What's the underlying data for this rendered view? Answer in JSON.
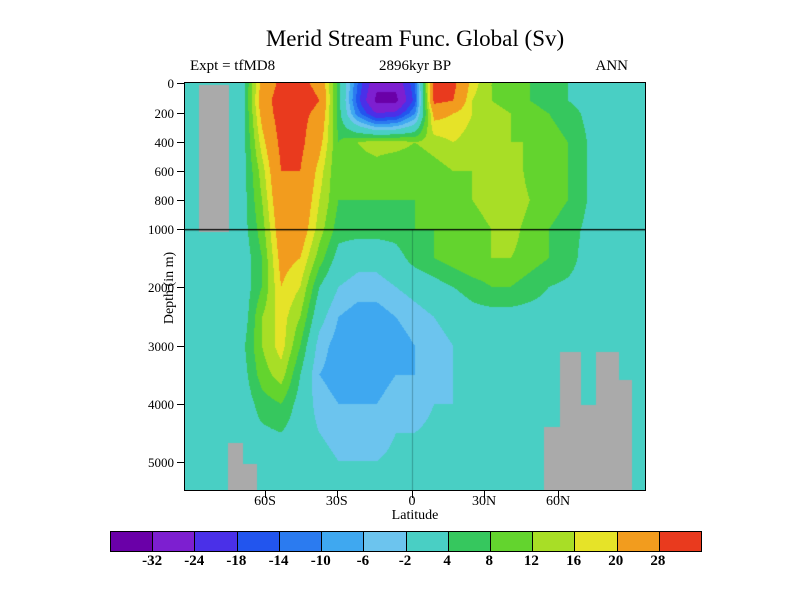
{
  "header": {
    "title": "Merid Stream Func. Global (Sv)",
    "experiment": "Expt = tfMD8",
    "time": "2896kyr BP",
    "season": "ANN"
  },
  "axes": {
    "y_label": "Depth (in m)",
    "x_label": "Latitude",
    "y_ticks": [
      {
        "label": "0",
        "f": 0
      },
      {
        "label": "200",
        "f": 0.0737
      },
      {
        "label": "400",
        "f": 0.145
      },
      {
        "label": "600",
        "f": 0.216
      },
      {
        "label": "800",
        "f": 0.287
      },
      {
        "label": "1000",
        "f": 0.359
      },
      {
        "label": "2000",
        "f": 0.501
      },
      {
        "label": "3000",
        "f": 0.646
      },
      {
        "label": "4000",
        "f": 0.789
      },
      {
        "label": "5000",
        "f": 0.931
      }
    ],
    "x_ticks": [
      {
        "label": "60S",
        "f": 0.174
      },
      {
        "label": "30S",
        "f": 0.33
      },
      {
        "label": "0",
        "f": 0.4935
      },
      {
        "label": "30N",
        "f": 0.65
      },
      {
        "label": "60N",
        "f": 0.811
      }
    ]
  },
  "colorbar": {
    "labels": [
      "-32",
      "-24",
      "-18",
      "-14",
      "-10",
      "-6",
      "-2",
      "4",
      "8",
      "12",
      "16",
      "20",
      "28"
    ]
  },
  "chart_data": {
    "type": "heatmap",
    "title": "Merid Stream Func. Global (Sv)",
    "xlabel": "Latitude",
    "ylabel": "Depth (in m)",
    "units": "Sv",
    "depth_ticks_m": [
      0,
      200,
      400,
      600,
      800,
      1000,
      2000,
      3000,
      4000,
      5000
    ],
    "lat_ticks": [
      "60S",
      "30S",
      "0",
      "30N",
      "60N"
    ],
    "levels": [
      -32,
      -24,
      -18,
      -14,
      -10,
      -6,
      -2,
      4,
      8,
      12,
      16,
      20,
      28
    ],
    "palette": [
      "#6a00a8",
      "#7d1fd0",
      "#4a30e8",
      "#2255ee",
      "#2b7bf0",
      "#3fa8f0",
      "#6cc4ee",
      "#49cfc4",
      "#36c75e",
      "#63d42e",
      "#a8de26",
      "#e6e328",
      "#f29c1e",
      "#e93a1e"
    ],
    "row_fracs": [
      0,
      0.042,
      0.074,
      0.145,
      0.216,
      0.287,
      0.359,
      0.43,
      0.501,
      0.575,
      0.646,
      0.717,
      0.789,
      0.86,
      0.931,
      1
    ],
    "values": [
      [
        2,
        2,
        2,
        2,
        22,
        30,
        30,
        26,
        6,
        -14,
        -30,
        -30,
        -14,
        30,
        30,
        18,
        12,
        8,
        8,
        6,
        4,
        2,
        1,
        1,
        1
      ],
      [
        2,
        2,
        2,
        2,
        24,
        32,
        32,
        28,
        6,
        -16,
        -34,
        -34,
        -16,
        30,
        28,
        16,
        12,
        10,
        8,
        6,
        4,
        2,
        1,
        1,
        1
      ],
      [
        2,
        2,
        2,
        2,
        22,
        32,
        30,
        26,
        6,
        -12,
        -24,
        -22,
        -10,
        22,
        20,
        16,
        14,
        12,
        10,
        8,
        6,
        3,
        2,
        1,
        1
      ],
      [
        2,
        2,
        2,
        2,
        18,
        30,
        30,
        22,
        8,
        12,
        14,
        14,
        12,
        14,
        16,
        14,
        14,
        12,
        12,
        10,
        8,
        4,
        2,
        1,
        1
      ],
      [
        2,
        2,
        2,
        2,
        14,
        28,
        28,
        18,
        8,
        10,
        10,
        8,
        8,
        10,
        12,
        12,
        14,
        16,
        10,
        10,
        8,
        4,
        2,
        1,
        1
      ],
      [
        2,
        2,
        2,
        2,
        12,
        26,
        26,
        16,
        8,
        8,
        8,
        8,
        8,
        10,
        10,
        12,
        14,
        16,
        12,
        10,
        8,
        4,
        2,
        1,
        1
      ],
      [
        2,
        2,
        2,
        2,
        10,
        24,
        24,
        14,
        6,
        6,
        6,
        6,
        8,
        8,
        10,
        10,
        12,
        14,
        10,
        8,
        6,
        3,
        2,
        1,
        1
      ],
      [
        1,
        1,
        1,
        1,
        8,
        22,
        20,
        10,
        2,
        0,
        0,
        2,
        6,
        8,
        10,
        12,
        12,
        12,
        10,
        8,
        6,
        2,
        1,
        1,
        1
      ],
      [
        1,
        1,
        1,
        1,
        8,
        20,
        16,
        4,
        -2,
        -4,
        -4,
        -2,
        0,
        2,
        4,
        6,
        8,
        8,
        6,
        4,
        3,
        2,
        1,
        1,
        1
      ],
      [
        1,
        1,
        1,
        1,
        12,
        18,
        12,
        0,
        -6,
        -8,
        -8,
        -6,
        -4,
        -2,
        0,
        2,
        2,
        2,
        2,
        2,
        1,
        1,
        1,
        1,
        1
      ],
      [
        1,
        1,
        1,
        3,
        12,
        18,
        8,
        -4,
        -8,
        -10,
        -10,
        -8,
        -6,
        -4,
        -2,
        0,
        1,
        1,
        1,
        1,
        1,
        1,
        1,
        1,
        1
      ],
      [
        1,
        1,
        1,
        2,
        10,
        14,
        4,
        -6,
        -8,
        -10,
        -8,
        -6,
        -6,
        -4,
        -2,
        0,
        1,
        1,
        1,
        1,
        1,
        1,
        1,
        1,
        1
      ],
      [
        1,
        1,
        1,
        1,
        6,
        8,
        2,
        -4,
        -6,
        -6,
        -6,
        -4,
        -4,
        -2,
        -2,
        0,
        1,
        1,
        1,
        1,
        1,
        1,
        1,
        1,
        1
      ],
      [
        1,
        1,
        1,
        1,
        3,
        4,
        1,
        -2,
        -4,
        -4,
        -4,
        -2,
        -2,
        -1,
        0,
        1,
        1,
        1,
        1,
        1,
        1,
        1,
        1,
        1,
        1
      ],
      [
        1,
        1,
        1,
        1,
        2,
        2,
        1,
        0,
        -2,
        -2,
        -2,
        -1,
        0,
        1,
        1,
        1,
        1,
        1,
        1,
        1,
        1,
        1,
        1,
        1,
        1
      ],
      [
        1,
        1,
        1,
        1,
        1,
        1,
        1,
        0,
        0,
        0,
        0,
        0,
        1,
        1,
        1,
        1,
        1,
        1,
        1,
        1,
        1,
        1,
        1,
        1,
        1
      ]
    ],
    "topography_color": "#aaaaaa",
    "topo_rects": [
      {
        "x": 0.03,
        "y": 0.004,
        "w": 0.065,
        "h": 0.361
      },
      {
        "x": 0.093,
        "y": 0.885,
        "w": 0.032,
        "h": 0.115
      },
      {
        "x": 0.125,
        "y": 0.935,
        "w": 0.03,
        "h": 0.065
      },
      {
        "x": 0.78,
        "y": 0.845,
        "w": 0.035,
        "h": 0.155
      },
      {
        "x": 0.815,
        "y": 0.66,
        "w": 0.045,
        "h": 0.34
      },
      {
        "x": 0.86,
        "y": 0.79,
        "w": 0.033,
        "h": 0.21
      },
      {
        "x": 0.893,
        "y": 0.66,
        "w": 0.049,
        "h": 0.34
      },
      {
        "x": 0.942,
        "y": 0.73,
        "w": 0.03,
        "h": 0.27
      }
    ],
    "line_1000m_f": 0.3587,
    "equator_line_f": 0.4935
  }
}
